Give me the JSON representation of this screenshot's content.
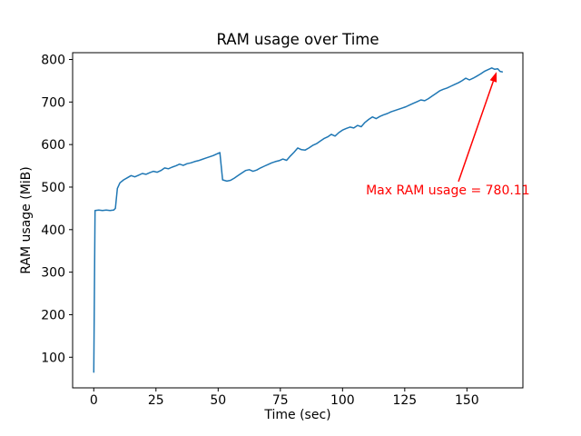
{
  "figure": {
    "background": "#ffffff",
    "text_color": "#000000"
  },
  "chart_data": {
    "type": "line",
    "title": "RAM usage over Time",
    "xlabel": "Time (sec)",
    "ylabel": "RAM usage (MiB)",
    "xlim": [
      -8.5,
      172.5
    ],
    "ylim": [
      28,
      816
    ],
    "x_ticks": [
      0,
      25,
      50,
      75,
      100,
      125,
      150
    ],
    "y_ticks": [
      100,
      200,
      300,
      400,
      500,
      600,
      700,
      800
    ],
    "grid": false,
    "legend": "none",
    "line_color": "#1f77b4",
    "line_width": 1.5,
    "series": [
      {
        "name": "RAM usage",
        "x": [
          0,
          0.5,
          2,
          3.5,
          5,
          6.5,
          8,
          8.7,
          9.5,
          10.5,
          12,
          13.5,
          15,
          16.5,
          18,
          19.5,
          21,
          22.5,
          24,
          25.5,
          27,
          28.5,
          30,
          31.5,
          33,
          34.5,
          36,
          37.5,
          39,
          40.5,
          42,
          43.5,
          45,
          46.5,
          48,
          49.5,
          50.7,
          51.8,
          53.5,
          55,
          56.5,
          58,
          59.5,
          61,
          62.5,
          64,
          65.5,
          67,
          68.5,
          70,
          71.5,
          73,
          74.5,
          76,
          77.5,
          79,
          80.5,
          82,
          83.5,
          85,
          86.5,
          88,
          89.5,
          91,
          92.5,
          94,
          95.5,
          97,
          98.5,
          100,
          101.5,
          103,
          104.5,
          106,
          107.5,
          109,
          110.5,
          112,
          113.5,
          115,
          116.5,
          118,
          119.5,
          121,
          122.5,
          124,
          125.5,
          127,
          128.5,
          130,
          131.5,
          133,
          134.5,
          136,
          137.5,
          139,
          140.5,
          142,
          143.5,
          145,
          146.5,
          148,
          149.5,
          151,
          152.5,
          154,
          155.5,
          157,
          158.5,
          160,
          161.2,
          162.4,
          163.3,
          164.2
        ],
        "y": [
          65,
          445,
          446,
          445,
          446,
          445,
          446,
          450,
          497,
          510,
          517,
          522,
          527,
          524,
          528,
          532,
          530,
          534,
          537,
          535,
          539,
          545,
          543,
          547,
          550,
          554,
          551,
          555,
          557,
          560,
          562,
          565,
          568,
          571,
          574,
          578,
          581,
          517,
          514,
          516,
          521,
          527,
          533,
          539,
          541,
          537,
          540,
          545,
          549,
          553,
          557,
          560,
          562,
          566,
          563,
          573,
          582,
          592,
          588,
          587,
          592,
          598,
          602,
          608,
          614,
          618,
          624,
          620,
          628,
          634,
          638,
          641,
          639,
          645,
          642,
          652,
          659,
          665,
          661,
          666,
          670,
          673,
          677,
          680,
          683,
          686,
          689,
          693,
          697,
          701,
          705,
          703,
          708,
          714,
          720,
          726,
          730,
          733,
          737,
          741,
          745,
          750,
          756,
          752,
          756,
          761,
          766,
          772,
          776,
          780.11,
          777,
          778,
          772,
          771
        ]
      }
    ],
    "annotation": {
      "text": "Max RAM usage = 780.11",
      "color": "#ff0000",
      "max_value": 780.11,
      "text_xy": [
        109.4,
        483
      ],
      "arrow_from": [
        146.6,
        513
      ],
      "arrow_to": [
        161.9,
        771
      ]
    }
  }
}
